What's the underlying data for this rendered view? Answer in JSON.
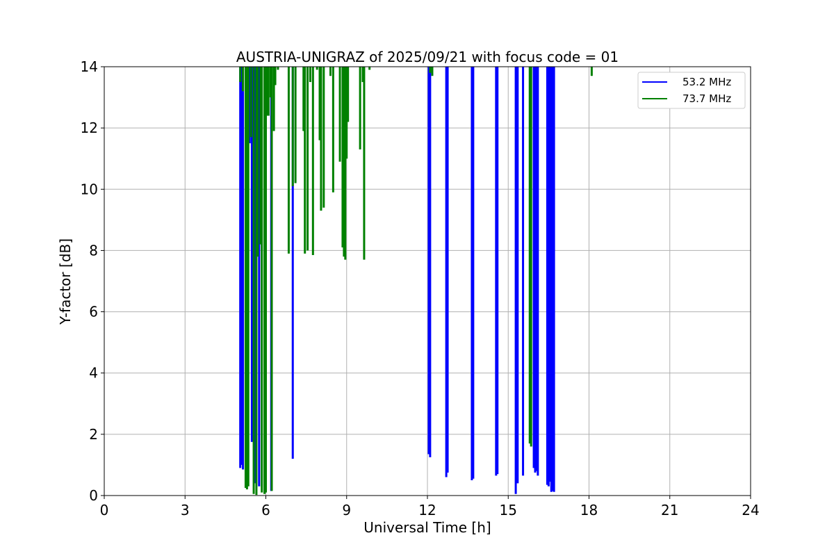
{
  "chart_data": {
    "type": "line",
    "title": "AUSTRIA-UNIGRAZ of 2025/09/21 with focus code = 01",
    "xlabel": "Universal Time [h]",
    "ylabel": "Y-factor [dB]",
    "xlim": [
      0,
      24
    ],
    "ylim": [
      0,
      14
    ],
    "xticks": [
      0,
      3,
      6,
      9,
      12,
      15,
      18,
      21,
      24
    ],
    "yticks": [
      0,
      2,
      4,
      6,
      8,
      10,
      12,
      14
    ],
    "grid": true,
    "legend_position": "top-right",
    "series": [
      {
        "name": "53.2 MHz",
        "color": "#0000ff",
        "spikes": [
          [
            5.05,
            0.9
          ],
          [
            5.1,
            1.0
          ],
          [
            5.15,
            0.85
          ],
          [
            5.4,
            11.5
          ],
          [
            5.48,
            1.75
          ],
          [
            5.62,
            0.4
          ],
          [
            5.75,
            0.3
          ],
          [
            6.2,
            0.15
          ],
          [
            7.0,
            1.2
          ],
          [
            12.05,
            1.35
          ],
          [
            12.1,
            1.25
          ],
          [
            12.7,
            0.6
          ],
          [
            12.75,
            0.75
          ],
          [
            13.65,
            0.5
          ],
          [
            13.7,
            0.55
          ],
          [
            14.55,
            0.65
          ],
          [
            14.6,
            0.7
          ],
          [
            15.28,
            0.05
          ],
          [
            15.35,
            0.4
          ],
          [
            15.55,
            0.65
          ],
          [
            15.95,
            0.9
          ],
          [
            16.0,
            0.75
          ],
          [
            16.05,
            0.8
          ],
          [
            16.1,
            0.65
          ],
          [
            16.45,
            0.35
          ],
          [
            16.5,
            0.3
          ],
          [
            16.55,
            0.45
          ],
          [
            16.6,
            0.12
          ],
          [
            16.65,
            0.15
          ],
          [
            16.7,
            0.12
          ]
        ]
      },
      {
        "name": "73.7 MHz",
        "color": "#008000",
        "spikes": [
          [
            5.05,
            13.5
          ],
          [
            5.15,
            13.2
          ],
          [
            5.25,
            0.25
          ],
          [
            5.3,
            0.2
          ],
          [
            5.35,
            0.3
          ],
          [
            5.45,
            11.7
          ],
          [
            5.55,
            0.05
          ],
          [
            5.65,
            0.02
          ],
          [
            5.7,
            7.8
          ],
          [
            5.8,
            8.2
          ],
          [
            5.85,
            0.1
          ],
          [
            5.95,
            0.05
          ],
          [
            6.0,
            0.1
          ],
          [
            6.05,
            12.4
          ],
          [
            6.1,
            12.4
          ],
          [
            6.18,
            13.0
          ],
          [
            6.22,
            0.15
          ],
          [
            6.3,
            11.9
          ],
          [
            6.35,
            13.4
          ],
          [
            6.45,
            13.9
          ],
          [
            6.85,
            7.9
          ],
          [
            7.0,
            10.1
          ],
          [
            7.1,
            10.2
          ],
          [
            7.4,
            11.9
          ],
          [
            7.45,
            7.9
          ],
          [
            7.55,
            8.0
          ],
          [
            7.65,
            13.5
          ],
          [
            7.75,
            7.85
          ],
          [
            7.9,
            13.9
          ],
          [
            8.0,
            11.6
          ],
          [
            8.05,
            9.3
          ],
          [
            8.15,
            9.4
          ],
          [
            8.4,
            13.7
          ],
          [
            8.5,
            9.9
          ],
          [
            8.75,
            10.9
          ],
          [
            8.85,
            8.1
          ],
          [
            8.9,
            7.8
          ],
          [
            8.95,
            7.7
          ],
          [
            9.0,
            11.0
          ],
          [
            9.05,
            12.2
          ],
          [
            9.5,
            11.3
          ],
          [
            9.6,
            13.5
          ],
          [
            9.65,
            7.7
          ],
          [
            9.85,
            13.9
          ],
          [
            12.1,
            13.8
          ],
          [
            12.18,
            13.7
          ],
          [
            15.8,
            1.7
          ],
          [
            15.85,
            1.6
          ],
          [
            18.1,
            13.7
          ]
        ]
      }
    ]
  }
}
